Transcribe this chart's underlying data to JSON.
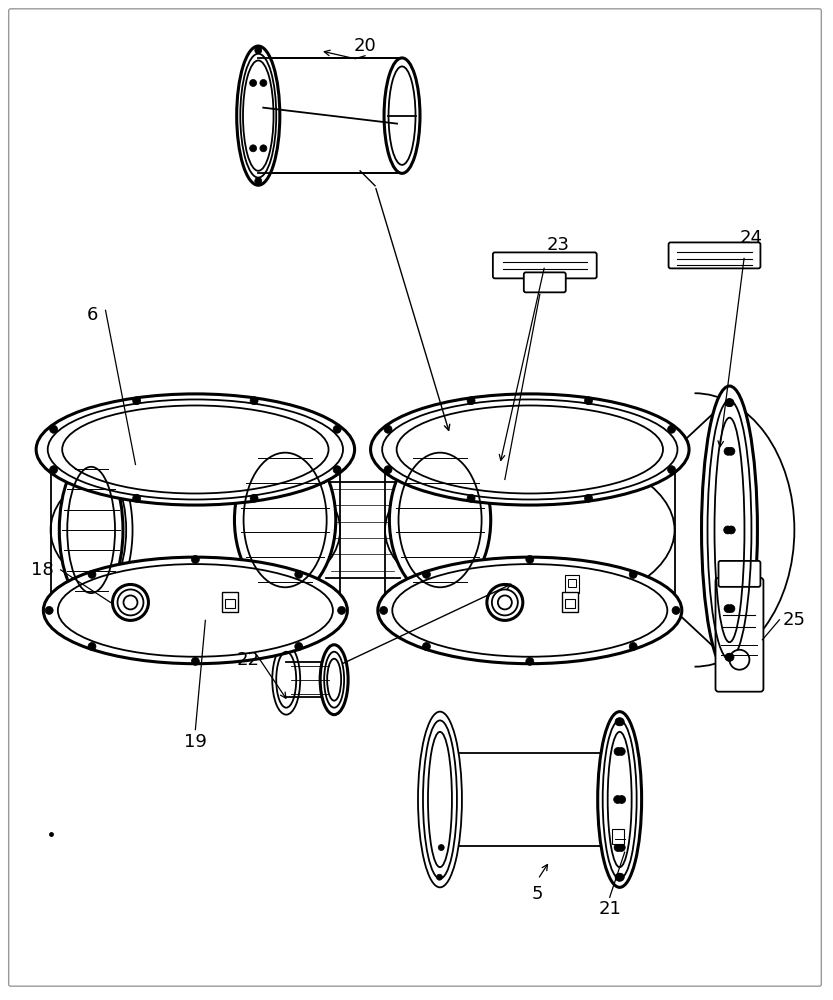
{
  "bg_color": "#ffffff",
  "line_color": "#000000",
  "lw": 1.3,
  "tlw": 2.2,
  "fig_width": 8.33,
  "fig_height": 10.0,
  "label_fs": 13
}
